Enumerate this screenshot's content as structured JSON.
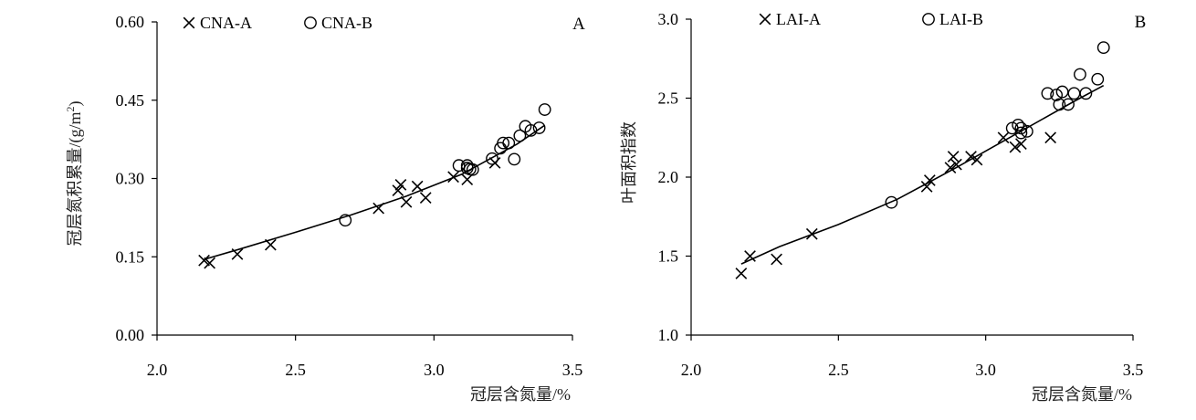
{
  "chart_data": [
    {
      "type": "scatter",
      "panel_label": "A",
      "xlabel": "冠层含氮量/%",
      "ylabel": "冠层氮积累量/(g/m",
      "ylabel_sup": "2",
      "ylabel_close": ")",
      "xlim": [
        2.0,
        3.5
      ],
      "ylim": [
        0.0,
        0.6
      ],
      "xticks": [
        "2.0",
        "2.5",
        "3.0",
        "3.5"
      ],
      "yticks": [
        "0.00",
        "0.15",
        "0.30",
        "0.45",
        "0.60"
      ],
      "legend_position": "top-left",
      "series": [
        {
          "name": "CNA-A",
          "marker": "x",
          "points": [
            [
              2.17,
              0.143
            ],
            [
              2.19,
              0.138
            ],
            [
              2.29,
              0.155
            ],
            [
              2.41,
              0.173
            ],
            [
              2.8,
              0.243
            ],
            [
              2.87,
              0.277
            ],
            [
              2.88,
              0.288
            ],
            [
              2.9,
              0.255
            ],
            [
              2.94,
              0.285
            ],
            [
              2.97,
              0.263
            ],
            [
              3.07,
              0.303
            ],
            [
              3.12,
              0.298
            ],
            [
              3.22,
              0.33
            ]
          ]
        },
        {
          "name": "CNA-B",
          "marker": "o",
          "points": [
            [
              2.68,
              0.22
            ],
            [
              3.09,
              0.325
            ],
            [
              3.12,
              0.32
            ],
            [
              3.12,
              0.325
            ],
            [
              3.13,
              0.318
            ],
            [
              3.14,
              0.317
            ],
            [
              3.21,
              0.338
            ],
            [
              3.24,
              0.358
            ],
            [
              3.25,
              0.368
            ],
            [
              3.27,
              0.368
            ],
            [
              3.29,
              0.337
            ],
            [
              3.31,
              0.382
            ],
            [
              3.33,
              0.4
            ],
            [
              3.35,
              0.392
            ],
            [
              3.38,
              0.397
            ],
            [
              3.4,
              0.432
            ]
          ]
        }
      ],
      "fit_line": {
        "x": [
          2.17,
          2.3,
          2.5,
          2.7,
          2.9,
          3.1,
          3.3,
          3.4
        ],
        "y": [
          0.145,
          0.165,
          0.197,
          0.23,
          0.266,
          0.308,
          0.366,
          0.402
        ]
      }
    },
    {
      "type": "scatter",
      "panel_label": "B",
      "xlabel": "冠层含氮量/%",
      "ylabel": "叶面积指数",
      "xlim": [
        2.0,
        3.5
      ],
      "ylim": [
        1.0,
        3.0
      ],
      "xticks": [
        "2.0",
        "2.5",
        "3.0",
        "3.5"
      ],
      "yticks": [
        "1.0",
        "1.5",
        "2.0",
        "2.5",
        "3.0"
      ],
      "legend_position": "top",
      "series": [
        {
          "name": "LAI-A",
          "marker": "x",
          "points": [
            [
              2.17,
              1.39
            ],
            [
              2.2,
              1.5
            ],
            [
              2.29,
              1.48
            ],
            [
              2.41,
              1.64
            ],
            [
              2.8,
              1.94
            ],
            [
              2.81,
              1.98
            ],
            [
              2.88,
              2.06
            ],
            [
              2.89,
              2.13
            ],
            [
              2.9,
              2.08
            ],
            [
              2.95,
              2.13
            ],
            [
              2.97,
              2.11
            ],
            [
              3.06,
              2.25
            ],
            [
              3.1,
              2.19
            ],
            [
              3.12,
              2.21
            ],
            [
              3.22,
              2.25
            ]
          ]
        },
        {
          "name": "LAI-B",
          "marker": "o",
          "points": [
            [
              2.68,
              1.84
            ],
            [
              3.09,
              2.31
            ],
            [
              3.11,
              2.33
            ],
            [
              3.12,
              2.31
            ],
            [
              3.12,
              2.28
            ],
            [
              3.14,
              2.29
            ],
            [
              3.21,
              2.53
            ],
            [
              3.24,
              2.52
            ],
            [
              3.25,
              2.46
            ],
            [
              3.26,
              2.54
            ],
            [
              3.28,
              2.46
            ],
            [
              3.3,
              2.53
            ],
            [
              3.32,
              2.65
            ],
            [
              3.34,
              2.53
            ],
            [
              3.38,
              2.62
            ],
            [
              3.4,
              2.82
            ]
          ]
        }
      ],
      "fit_line": {
        "x": [
          2.17,
          2.3,
          2.5,
          2.7,
          2.9,
          3.1,
          3.3,
          3.4
        ],
        "y": [
          1.45,
          1.56,
          1.7,
          1.86,
          2.06,
          2.27,
          2.48,
          2.58
        ]
      }
    }
  ]
}
